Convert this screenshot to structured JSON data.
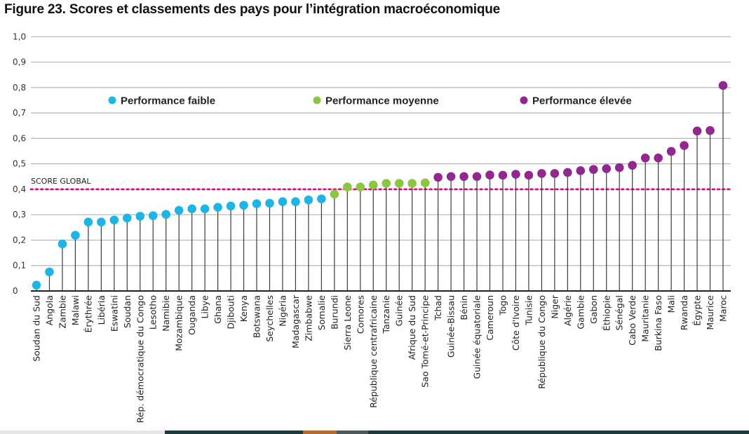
{
  "title": "Figure 23. Scores et classements des pays pour l’intégration macroéconomique",
  "chart_data": {
    "type": "lollipop",
    "ylim": [
      0,
      1.0
    ],
    "yticks": [
      "0",
      "0,1",
      "0,2",
      "0,3",
      "0,4",
      "0,5",
      "0,6",
      "0,7",
      "0,8",
      "0,9",
      "1,0"
    ],
    "grid": true,
    "legend_placement": "top",
    "reference_line": {
      "label": "SCORE GLOBAL",
      "value": 0.4,
      "color": "#e5007d"
    },
    "groups": [
      {
        "name": "Performance faible",
        "color": "#1db5e6"
      },
      {
        "name": "Performance moyenne",
        "color": "#8cc63e"
      },
      {
        "name": "Performance élevée",
        "color": "#92278f"
      }
    ],
    "categories": [
      "Soudan du Sud",
      "Angola",
      "Zambie",
      "Malawi",
      "Érythrée",
      "Libéria",
      "Eswatini",
      "Soudan",
      "Rép. démocratique du Congo",
      "Lesotho",
      "Namibie",
      "Mozambique",
      "Ouganda",
      "Libye",
      "Ghana",
      "Djibouti",
      "Kenya",
      "Botswana",
      "Seychelles",
      "Nigéria",
      "Madagascar",
      "Zimbabwe",
      "Somalie",
      "Burundi",
      "Sierra Leone",
      "Comores",
      "République centrafricaine",
      "Tanzanie",
      "Guinée",
      "Afrique du Sud",
      "Sao Tomé-et-Principe",
      "Tchad",
      "Guinée-Bissau",
      "Bénin",
      "Guinée équatoriale",
      "Cameroun",
      "Togo",
      "Côte d'Ivoire",
      "Tunisie",
      "République du Congo",
      "Niger",
      "Algérie",
      "Gambie",
      "Gabon",
      "Éthiopie",
      "Sénégal",
      "Cabo Verde",
      "Mauritanie",
      "Burkina Faso",
      "Mali",
      "Rwanda",
      "Égypte",
      "Maurice",
      "Maroc"
    ],
    "values": [
      0.023,
      0.075,
      0.185,
      0.219,
      0.271,
      0.271,
      0.279,
      0.287,
      0.294,
      0.296,
      0.301,
      0.317,
      0.323,
      0.323,
      0.329,
      0.334,
      0.337,
      0.343,
      0.345,
      0.351,
      0.351,
      0.358,
      0.362,
      0.381,
      0.409,
      0.409,
      0.417,
      0.423,
      0.423,
      0.423,
      0.425,
      0.447,
      0.45,
      0.45,
      0.45,
      0.456,
      0.455,
      0.459,
      0.455,
      0.462,
      0.462,
      0.466,
      0.473,
      0.478,
      0.481,
      0.485,
      0.494,
      0.523,
      0.523,
      0.549,
      0.572,
      0.629,
      0.631,
      0.808
    ],
    "group_index": [
      0,
      0,
      0,
      0,
      0,
      0,
      0,
      0,
      0,
      0,
      0,
      0,
      0,
      0,
      0,
      0,
      0,
      0,
      0,
      0,
      0,
      0,
      0,
      1,
      1,
      1,
      1,
      1,
      1,
      1,
      1,
      2,
      2,
      2,
      2,
      2,
      2,
      2,
      2,
      2,
      2,
      2,
      2,
      2,
      2,
      2,
      2,
      2,
      2,
      2,
      2,
      2,
      2,
      2
    ]
  }
}
